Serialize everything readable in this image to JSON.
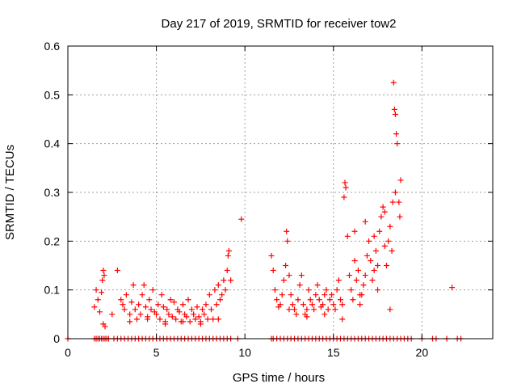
{
  "chart_data": {
    "type": "scatter",
    "title": "Day 217 of 2019, SRMTID for receiver tow2",
    "xlabel": "GPS time / hours",
    "ylabel": "SRMTID / TECUs",
    "xlim": [
      0,
      24
    ],
    "ylim": [
      0,
      0.6
    ],
    "xticks": [
      0,
      5,
      10,
      15,
      20
    ],
    "yticks": [
      0,
      0.1,
      0.2,
      0.3,
      0.4,
      0.5,
      0.6
    ],
    "xtick_labels": [
      "0",
      "5",
      "10",
      "15",
      "20"
    ],
    "ytick_labels": [
      "0",
      "0.1",
      "0.2",
      "0.3",
      "0.4",
      "0.5",
      "0.6"
    ],
    "grid": true,
    "marker": "+",
    "marker_color": "#ff0000",
    "series": [
      {
        "name": "SRMTID tow2",
        "x": [
          0.0,
          1.5,
          1.6,
          1.7,
          1.8,
          1.9,
          2.0,
          2.1,
          2.2,
          2.3,
          2.6,
          2.8,
          3.0,
          3.2,
          3.4,
          3.6,
          3.8,
          4.0,
          4.2,
          4.4,
          4.6,
          4.8,
          5.0,
          5.2,
          5.4,
          5.6,
          5.8,
          6.0,
          6.2,
          6.4,
          6.6,
          6.8,
          7.0,
          7.2,
          7.4,
          7.6,
          7.8,
          8.0,
          8.2,
          8.4,
          8.6,
          8.8,
          9.0,
          9.2,
          9.6,
          11.5,
          11.6,
          11.8,
          12.0,
          12.2,
          12.4,
          12.6,
          12.8,
          13.0,
          13.2,
          13.4,
          13.6,
          13.8,
          14.0,
          14.2,
          14.4,
          14.6,
          14.8,
          15.0,
          15.2,
          15.4,
          15.6,
          15.8,
          16.0,
          16.2,
          16.4,
          16.6,
          16.8,
          17.0,
          17.2,
          17.4,
          17.6,
          17.8,
          18.0,
          18.2,
          18.4,
          18.6,
          18.8,
          19.0,
          19.2,
          19.4,
          20.0,
          20.6,
          20.8,
          21.4,
          22.0,
          22.2,
          1.5,
          1.6,
          1.7,
          1.8,
          1.9,
          1.95,
          2.0,
          2.05,
          2.1,
          2.8,
          3.0,
          3.1,
          3.2,
          3.3,
          3.5,
          3.6,
          3.7,
          3.8,
          3.9,
          4.0,
          4.1,
          4.2,
          4.3,
          4.4,
          4.5,
          4.6,
          4.7,
          4.8,
          4.9,
          5.0,
          5.1,
          5.2,
          5.3,
          5.4,
          5.5,
          5.6,
          5.7,
          5.8,
          5.9,
          6.0,
          6.1,
          6.2,
          6.3,
          6.4,
          6.5,
          6.6,
          6.7,
          6.8,
          6.9,
          7.0,
          7.1,
          7.2,
          7.3,
          7.4,
          7.5,
          7.6,
          7.7,
          7.8,
          7.9,
          8.0,
          8.1,
          8.2,
          8.3,
          8.4,
          8.5,
          8.6,
          8.7,
          8.8,
          8.9,
          9.0,
          9.05,
          9.1,
          9.2,
          9.8,
          11.5,
          11.6,
          11.7,
          11.8,
          11.9,
          12.0,
          12.1,
          12.2,
          12.3,
          12.35,
          12.4,
          12.5,
          12.6,
          12.7,
          12.8,
          12.9,
          13.0,
          13.1,
          13.2,
          13.3,
          13.4,
          13.5,
          13.6,
          13.7,
          13.8,
          13.9,
          14.0,
          14.1,
          14.2,
          14.3,
          14.4,
          14.5,
          14.6,
          14.7,
          14.8,
          14.9,
          15.0,
          15.1,
          15.2,
          15.3,
          15.4,
          15.5,
          15.6,
          15.65,
          15.7,
          15.8,
          15.9,
          16.0,
          16.1,
          16.2,
          16.3,
          16.4,
          16.5,
          16.6,
          16.7,
          16.8,
          16.9,
          17.0,
          17.1,
          17.2,
          17.3,
          17.4,
          17.5,
          17.6,
          17.7,
          17.8,
          17.9,
          18.0,
          18.1,
          18.2,
          18.3,
          18.35,
          18.4,
          18.45,
          18.5,
          18.55,
          18.6,
          18.7,
          18.75,
          18.8,
          21.7,
          2.0,
          2.5,
          3.5,
          4.5,
          5.5,
          6.5,
          7.5,
          8.5,
          12.5,
          13.5,
          14.5,
          15.5,
          16.5,
          17.5,
          18.5,
          16.2,
          16.8,
          17.3,
          17.9,
          18.2
        ],
        "y": [
          0,
          0,
          0,
          0,
          0,
          0,
          0,
          0,
          0,
          0,
          0,
          0,
          0,
          0,
          0,
          0,
          0,
          0,
          0,
          0,
          0,
          0,
          0,
          0,
          0,
          0,
          0,
          0,
          0,
          0,
          0,
          0,
          0,
          0,
          0,
          0,
          0,
          0,
          0,
          0,
          0,
          0,
          0,
          0,
          0,
          0,
          0,
          0,
          0,
          0,
          0,
          0,
          0,
          0,
          0,
          0,
          0,
          0,
          0,
          0,
          0,
          0,
          0,
          0,
          0,
          0,
          0,
          0,
          0,
          0,
          0,
          0,
          0,
          0,
          0,
          0,
          0,
          0,
          0,
          0,
          0,
          0,
          0,
          0,
          0,
          0,
          0,
          0,
          0,
          0,
          0,
          0,
          0.065,
          0.1,
          0.08,
          0.055,
          0.095,
          0.12,
          0.14,
          0.13,
          0.025,
          0.14,
          0.08,
          0.07,
          0.06,
          0.09,
          0.05,
          0.075,
          0.11,
          0.06,
          0.04,
          0.07,
          0.05,
          0.09,
          0.11,
          0.065,
          0.045,
          0.08,
          0.06,
          0.1,
          0.055,
          0.05,
          0.07,
          0.04,
          0.09,
          0.065,
          0.035,
          0.06,
          0.05,
          0.08,
          0.045,
          0.075,
          0.04,
          0.06,
          0.055,
          0.035,
          0.07,
          0.05,
          0.045,
          0.08,
          0.035,
          0.06,
          0.05,
          0.04,
          0.065,
          0.045,
          0.035,
          0.06,
          0.05,
          0.07,
          0.04,
          0.09,
          0.06,
          0.04,
          0.1,
          0.07,
          0.11,
          0.08,
          0.09,
          0.12,
          0.1,
          0.14,
          0.17,
          0.18,
          0.12,
          0.245,
          0.17,
          0.14,
          0.1,
          0.08,
          0.065,
          0.07,
          0.09,
          0.12,
          0.15,
          0.22,
          0.2,
          0.13,
          0.09,
          0.07,
          0.06,
          0.05,
          0.08,
          0.11,
          0.13,
          0.07,
          0.05,
          0.06,
          0.1,
          0.08,
          0.07,
          0.06,
          0.09,
          0.11,
          0.08,
          0.065,
          0.07,
          0.09,
          0.1,
          0.06,
          0.08,
          0.09,
          0.07,
          0.06,
          0.1,
          0.12,
          0.08,
          0.07,
          0.29,
          0.32,
          0.31,
          0.21,
          0.13,
          0.1,
          0.08,
          0.16,
          0.12,
          0.14,
          0.07,
          0.09,
          0.11,
          0.13,
          0.17,
          0.2,
          0.16,
          0.12,
          0.14,
          0.18,
          0.1,
          0.22,
          0.25,
          0.27,
          0.19,
          0.15,
          0.2,
          0.23,
          0.18,
          0.28,
          0.525,
          0.47,
          0.46,
          0.42,
          0.4,
          0.28,
          0.25,
          0.325,
          0.105,
          0.03,
          0.05,
          0.035,
          0.04,
          0.03,
          0.035,
          0.03,
          0.04,
          0.06,
          0.045,
          0.05,
          0.04,
          0.09,
          0.15,
          0.3,
          0.22,
          0.24,
          0.21,
          0.26,
          0.06
        ]
      }
    ]
  }
}
